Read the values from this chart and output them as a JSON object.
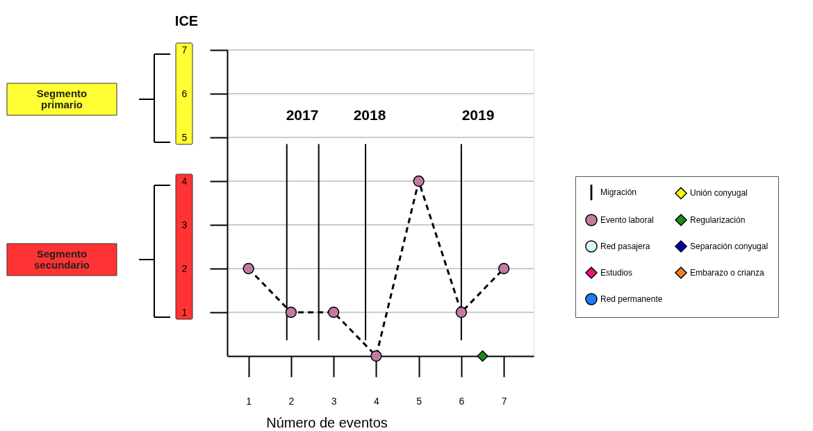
{
  "chart_data": {
    "type": "line",
    "ylabel": "ICE",
    "xlabel": "Número de eventos",
    "xlim": [
      0.5,
      7.7
    ],
    "ylim": [
      0,
      7
    ],
    "xticks": [
      1,
      2,
      3,
      4,
      5,
      6,
      7
    ],
    "yticks": [
      1,
      2,
      3,
      4,
      5,
      6,
      7
    ],
    "grid": "y",
    "legend": "right",
    "series": [
      {
        "name": "Migración",
        "type": "line",
        "marker": "none",
        "line_style": "solid",
        "color": "#000000",
        "x": [
          1.9,
          1.9,
          null,
          2.65,
          2.65,
          null,
          3.75,
          3.75,
          null,
          6.0,
          6.0
        ],
        "values": [
          0.36,
          4.85,
          null,
          0.36,
          4.85,
          null,
          0.36,
          4.85,
          null,
          0.36,
          4.85
        ]
      },
      {
        "name": "Evento laboral",
        "marker": "circle",
        "line_style": "dashed",
        "color": "#c27ba0",
        "x": [
          1,
          2,
          3,
          4,
          5,
          6,
          7
        ],
        "values": [
          2,
          1,
          1,
          0,
          4,
          1,
          2
        ]
      },
      {
        "name": "Red pasajera",
        "type": "scatter",
        "marker": "circle",
        "color": "#d9fafa"
      },
      {
        "name": "Estudios",
        "type": "scatter",
        "marker": "diamond",
        "color": "#f0107f"
      },
      {
        "name": "Red permanente",
        "type": "scatter",
        "marker": "circle",
        "color": "#1e7cf0"
      },
      {
        "name": "Unión conyugal",
        "type": "scatter",
        "marker": "diamond",
        "color": "#ffff00"
      },
      {
        "name": "Regularización",
        "type": "scatter",
        "marker": "diamond",
        "color": "#1a8a1a",
        "x": [
          6.5
        ],
        "values": [
          0
        ]
      },
      {
        "name": "Separación conyugal",
        "type": "scatter",
        "marker": "diamond",
        "color": "#0000b0"
      },
      {
        "name": "Embarazo o crianza",
        "type": "scatter",
        "marker": "diamond",
        "color": "#f08020"
      }
    ],
    "annotations": [
      "2017",
      "2018",
      "2019",
      "Segmento primario",
      "Segmento secundario"
    ]
  }
}
